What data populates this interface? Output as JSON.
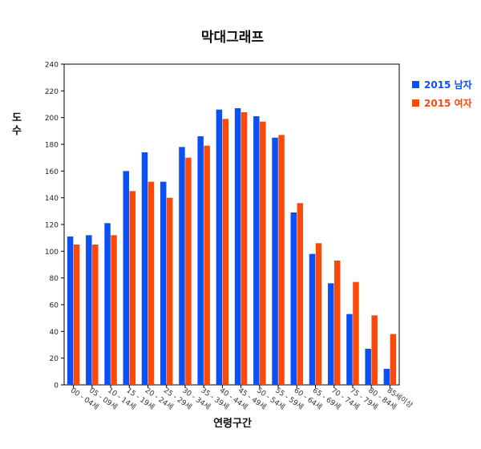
{
  "chart_data": {
    "type": "bar",
    "title": "막대그래프",
    "xlabel": "연령구간",
    "ylabel": "도수",
    "ylim": [
      0,
      240
    ],
    "yticks": [
      0,
      20,
      40,
      60,
      80,
      100,
      120,
      140,
      160,
      180,
      200,
      220,
      240
    ],
    "categories": [
      "00 - 04세",
      "05 - 09세",
      "10 - 14세",
      "15 - 19세",
      "20 - 24세",
      "25 - 29세",
      "30 - 34세",
      "35 - 39세",
      "40 - 44세",
      "45 - 49세",
      "50 - 54세",
      "55 - 59세",
      "60 - 64세",
      "65 - 69세",
      "70 - 74세",
      "75 - 79세",
      "80 - 84세",
      "85세이상"
    ],
    "series": [
      {
        "name": "2015 남자",
        "color": "#0a50f5",
        "values": [
          111,
          112,
          121,
          160,
          174,
          152,
          178,
          186,
          206,
          207,
          201,
          185,
          129,
          98,
          76,
          53,
          27,
          12
        ]
      },
      {
        "name": "2015 여자",
        "color": "#fa4a0a",
        "values": [
          105,
          105,
          112,
          145,
          152,
          140,
          170,
          179,
          199,
          204,
          197,
          187,
          136,
          106,
          93,
          77,
          52,
          38
        ]
      }
    ],
    "legend_position": "right",
    "grid": false
  }
}
